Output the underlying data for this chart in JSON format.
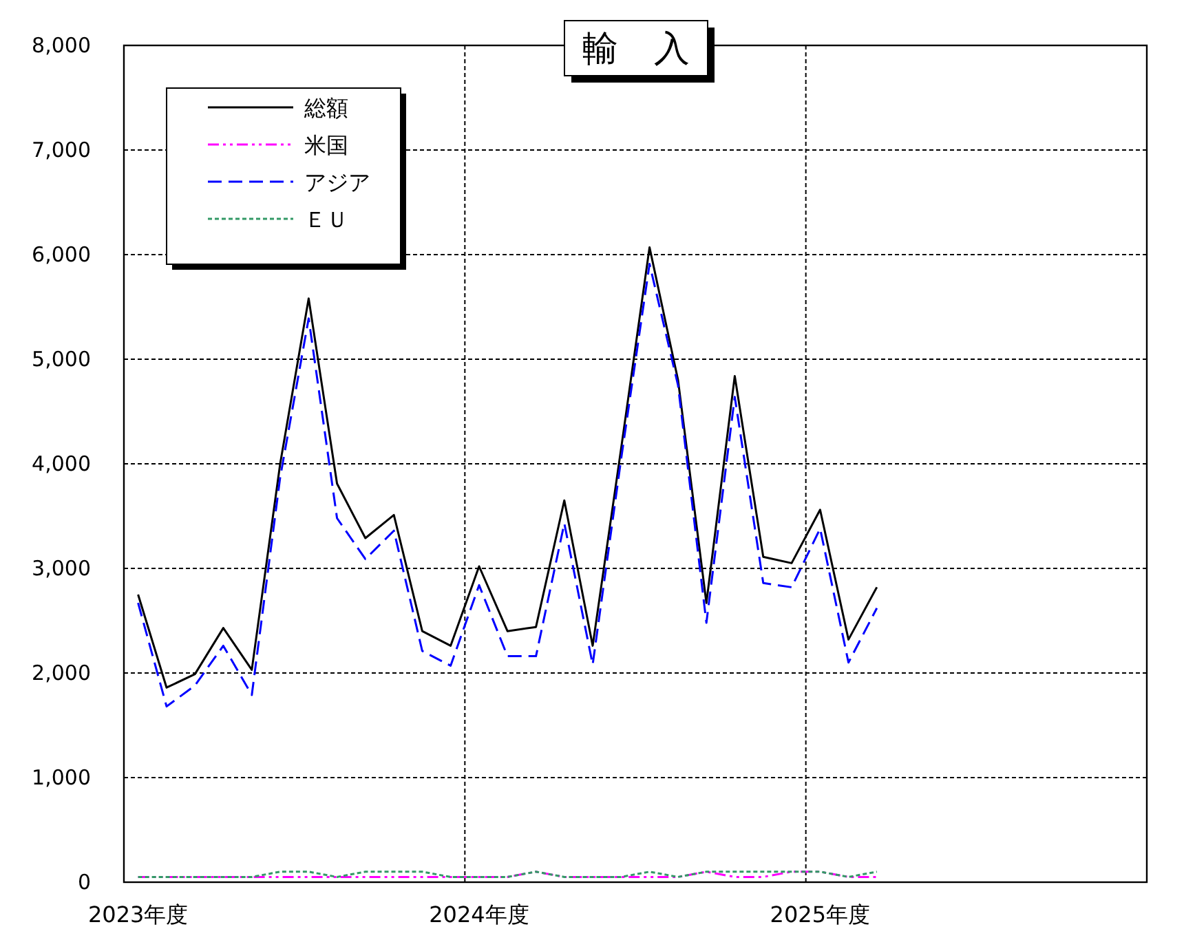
{
  "chart_data": {
    "type": "line",
    "title": "輸　入",
    "categories": [
      "2023年度",
      null,
      null,
      null,
      null,
      null,
      null,
      null,
      null,
      null,
      null,
      null,
      "2024年度",
      null,
      null,
      null,
      null,
      null,
      null,
      null,
      null,
      null,
      null,
      null,
      "2025年度",
      null,
      null,
      null,
      null,
      null,
      null,
      null,
      null,
      null,
      null,
      null
    ],
    "ylim": [
      0,
      8000
    ],
    "yticks": [
      {
        "value": 0,
        "label": "0"
      },
      {
        "value": 1000,
        "label": "1,000"
      },
      {
        "value": 2000,
        "label": "2,000"
      },
      {
        "value": 3000,
        "label": "3,000"
      },
      {
        "value": 4000,
        "label": "4,000"
      },
      {
        "value": 5000,
        "label": "5,000"
      },
      {
        "value": 6000,
        "label": "6,000"
      },
      {
        "value": 7000,
        "label": "7,000"
      },
      {
        "value": 8000,
        "label": "8,000"
      }
    ],
    "grid": true,
    "legend": "top left",
    "series": [
      {
        "name": "総額",
        "color": "#000000",
        "line_style": "solid",
        "values": [
          2750,
          1860,
          1990,
          2430,
          2030,
          4000,
          5580,
          3810,
          3290,
          3510,
          2400,
          2260,
          3020,
          2400,
          2440,
          3650,
          2260,
          4150,
          6070,
          4800,
          2670,
          4840,
          3110,
          3050,
          3560,
          2320,
          2820,
          null,
          null,
          null,
          null,
          null,
          null,
          null,
          null,
          null
        ]
      },
      {
        "name": "米国",
        "color": "#ff00ff",
        "line_style": "dashdot",
        "values": [
          50,
          50,
          50,
          50,
          50,
          50,
          50,
          50,
          50,
          50,
          50,
          50,
          50,
          50,
          100,
          50,
          50,
          50,
          50,
          50,
          100,
          50,
          50,
          100,
          100,
          50,
          50,
          null,
          null,
          null,
          null,
          null,
          null,
          null,
          null,
          null
        ]
      },
      {
        "name": "アジア",
        "color": "#0000ff",
        "line_style": "dashed",
        "values": [
          2670,
          1680,
          1880,
          2260,
          1790,
          3870,
          5390,
          3480,
          3090,
          3360,
          2210,
          2070,
          2840,
          2160,
          2160,
          3430,
          2080,
          4050,
          5910,
          4750,
          2480,
          4640,
          2860,
          2820,
          3380,
          2100,
          2620,
          null,
          null,
          null,
          null,
          null,
          null,
          null,
          null,
          null
        ]
      },
      {
        "name": "ＥＵ",
        "color": "#339966",
        "line_style": "dotted",
        "values": [
          50,
          50,
          50,
          50,
          50,
          100,
          100,
          50,
          100,
          100,
          100,
          50,
          50,
          50,
          100,
          50,
          50,
          50,
          100,
          50,
          100,
          100,
          100,
          100,
          100,
          50,
          100,
          null,
          null,
          null,
          null,
          null,
          null,
          null,
          null,
          null
        ]
      }
    ]
  }
}
